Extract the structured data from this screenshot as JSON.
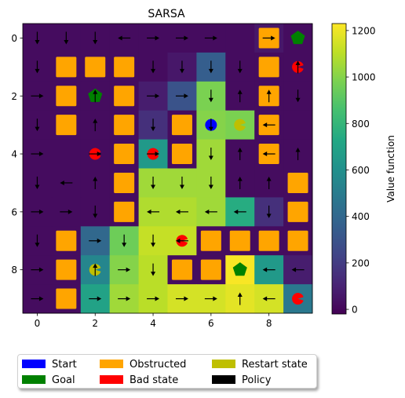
{
  "chart_data": {
    "type": "heatmap",
    "title": "SARSA",
    "xlabel": "",
    "ylabel": "",
    "colorbar_label": "Value function",
    "colorbar_ticks": [
      0,
      200,
      400,
      600,
      800,
      1000,
      1200
    ],
    "colorbar_range": [
      -20,
      1230
    ],
    "colormap": "viridis",
    "x_ticks": [
      0,
      2,
      4,
      6,
      8
    ],
    "y_ticks": [
      0,
      2,
      4,
      6,
      8
    ],
    "grid_size": [
      10,
      10
    ],
    "values": [
      [
        20,
        20,
        20,
        20,
        20,
        20,
        20,
        20,
        60,
        20
      ],
      [
        20,
        20,
        20,
        20,
        20,
        60,
        350,
        20,
        20,
        20
      ],
      [
        20,
        20,
        20,
        20,
        80,
        300,
        980,
        20,
        20,
        20
      ],
      [
        20,
        20,
        20,
        20,
        150,
        20,
        1000,
        980,
        20,
        20
      ],
      [
        20,
        20,
        20,
        20,
        650,
        20,
        1050,
        20,
        20,
        20
      ],
      [
        20,
        20,
        20,
        20,
        1050,
        1050,
        1050,
        20,
        20,
        20
      ],
      [
        20,
        20,
        20,
        20,
        1080,
        1080,
        1050,
        750,
        150,
        20
      ],
      [
        20,
        20,
        400,
        950,
        1120,
        1120,
        20,
        20,
        20,
        20
      ],
      [
        20,
        20,
        550,
        1000,
        1100,
        20,
        20,
        1220,
        650,
        80
      ],
      [
        20,
        20,
        700,
        1050,
        1100,
        1150,
        1150,
        1180,
        1150,
        480
      ]
    ],
    "obstructed": [
      [
        8,
        0
      ],
      [
        1,
        1
      ],
      [
        2,
        1
      ],
      [
        3,
        1
      ],
      [
        8,
        1
      ],
      [
        1,
        2
      ],
      [
        3,
        2
      ],
      [
        8,
        2
      ],
      [
        1,
        3
      ],
      [
        3,
        3
      ],
      [
        5,
        3
      ],
      [
        8,
        3
      ],
      [
        3,
        4
      ],
      [
        5,
        4
      ],
      [
        8,
        4
      ],
      [
        3,
        5
      ],
      [
        9,
        5
      ],
      [
        3,
        6
      ],
      [
        9,
        6
      ],
      [
        1,
        7
      ],
      [
        6,
        7
      ],
      [
        7,
        7
      ],
      [
        8,
        7
      ],
      [
        9,
        7
      ],
      [
        1,
        8
      ],
      [
        5,
        8
      ],
      [
        6,
        8
      ],
      [
        1,
        9
      ]
    ],
    "goals": [
      [
        9,
        0
      ],
      [
        2,
        2
      ],
      [
        7,
        8
      ]
    ],
    "bad_states": [
      [
        9,
        1
      ],
      [
        2,
        4
      ],
      [
        4,
        4
      ],
      [
        5,
        7
      ],
      [
        9,
        9
      ]
    ],
    "restart_states": [
      [
        7,
        3
      ],
      [
        2,
        8
      ]
    ],
    "start": [
      6,
      3
    ],
    "policy": [
      {
        "cell": [
          0,
          0
        ],
        "dir": "down"
      },
      {
        "cell": [
          1,
          0
        ],
        "dir": "down"
      },
      {
        "cell": [
          2,
          0
        ],
        "dir": "down"
      },
      {
        "cell": [
          3,
          0
        ],
        "dir": "left"
      },
      {
        "cell": [
          4,
          0
        ],
        "dir": "right"
      },
      {
        "cell": [
          5,
          0
        ],
        "dir": "right"
      },
      {
        "cell": [
          6,
          0
        ],
        "dir": "right"
      },
      {
        "cell": [
          8,
          0
        ],
        "dir": "right"
      },
      {
        "cell": [
          0,
          1
        ],
        "dir": "down"
      },
      {
        "cell": [
          4,
          1
        ],
        "dir": "down"
      },
      {
        "cell": [
          5,
          1
        ],
        "dir": "down"
      },
      {
        "cell": [
          6,
          1
        ],
        "dir": "down"
      },
      {
        "cell": [
          7,
          1
        ],
        "dir": "down"
      },
      {
        "cell": [
          9,
          1
        ],
        "dir": "up"
      },
      {
        "cell": [
          0,
          2
        ],
        "dir": "right"
      },
      {
        "cell": [
          2,
          2
        ],
        "dir": "up"
      },
      {
        "cell": [
          4,
          2
        ],
        "dir": "right"
      },
      {
        "cell": [
          5,
          2
        ],
        "dir": "right"
      },
      {
        "cell": [
          6,
          2
        ],
        "dir": "down"
      },
      {
        "cell": [
          7,
          2
        ],
        "dir": "up"
      },
      {
        "cell": [
          8,
          2
        ],
        "dir": "up"
      },
      {
        "cell": [
          9,
          2
        ],
        "dir": "down"
      },
      {
        "cell": [
          0,
          3
        ],
        "dir": "down"
      },
      {
        "cell": [
          2,
          3
        ],
        "dir": "up"
      },
      {
        "cell": [
          4,
          3
        ],
        "dir": "down"
      },
      {
        "cell": [
          6,
          3
        ],
        "dir": "down"
      },
      {
        "cell": [
          8,
          3
        ],
        "dir": "left"
      },
      {
        "cell": [
          0,
          4
        ],
        "dir": "right"
      },
      {
        "cell": [
          2,
          4
        ],
        "dir": "right"
      },
      {
        "cell": [
          4,
          4
        ],
        "dir": "right"
      },
      {
        "cell": [
          6,
          4
        ],
        "dir": "down"
      },
      {
        "cell": [
          7,
          4
        ],
        "dir": "up"
      },
      {
        "cell": [
          8,
          4
        ],
        "dir": "left"
      },
      {
        "cell": [
          9,
          4
        ],
        "dir": "up"
      },
      {
        "cell": [
          0,
          5
        ],
        "dir": "down"
      },
      {
        "cell": [
          1,
          5
        ],
        "dir": "left"
      },
      {
        "cell": [
          2,
          5
        ],
        "dir": "up"
      },
      {
        "cell": [
          4,
          5
        ],
        "dir": "down"
      },
      {
        "cell": [
          5,
          5
        ],
        "dir": "down"
      },
      {
        "cell": [
          6,
          5
        ],
        "dir": "down"
      },
      {
        "cell": [
          7,
          5
        ],
        "dir": "up"
      },
      {
        "cell": [
          8,
          5
        ],
        "dir": "up"
      },
      {
        "cell": [
          0,
          6
        ],
        "dir": "right"
      },
      {
        "cell": [
          1,
          6
        ],
        "dir": "right"
      },
      {
        "cell": [
          2,
          6
        ],
        "dir": "down"
      },
      {
        "cell": [
          4,
          6
        ],
        "dir": "left"
      },
      {
        "cell": [
          5,
          6
        ],
        "dir": "left"
      },
      {
        "cell": [
          6,
          6
        ],
        "dir": "left"
      },
      {
        "cell": [
          7,
          6
        ],
        "dir": "left"
      },
      {
        "cell": [
          8,
          6
        ],
        "dir": "down"
      },
      {
        "cell": [
          0,
          7
        ],
        "dir": "down"
      },
      {
        "cell": [
          2,
          7
        ],
        "dir": "right"
      },
      {
        "cell": [
          3,
          7
        ],
        "dir": "down"
      },
      {
        "cell": [
          4,
          7
        ],
        "dir": "down"
      },
      {
        "cell": [
          5,
          7
        ],
        "dir": "left"
      },
      {
        "cell": [
          0,
          8
        ],
        "dir": "right"
      },
      {
        "cell": [
          2,
          8
        ],
        "dir": "up"
      },
      {
        "cell": [
          3,
          8
        ],
        "dir": "right"
      },
      {
        "cell": [
          4,
          8
        ],
        "dir": "down"
      },
      {
        "cell": [
          8,
          8
        ],
        "dir": "left"
      },
      {
        "cell": [
          9,
          8
        ],
        "dir": "left"
      },
      {
        "cell": [
          0,
          9
        ],
        "dir": "right"
      },
      {
        "cell": [
          2,
          9
        ],
        "dir": "right"
      },
      {
        "cell": [
          3,
          9
        ],
        "dir": "right"
      },
      {
        "cell": [
          4,
          9
        ],
        "dir": "right"
      },
      {
        "cell": [
          5,
          9
        ],
        "dir": "right"
      },
      {
        "cell": [
          6,
          9
        ],
        "dir": "right"
      },
      {
        "cell": [
          7,
          9
        ],
        "dir": "up"
      },
      {
        "cell": [
          8,
          9
        ],
        "dir": "left"
      }
    ],
    "colors": {
      "start": "#0000ff",
      "goal": "#008000",
      "obstructed": "#ffa500",
      "bad_state": "#ff0000",
      "restart_state": "#bfbf00",
      "policy": "#000000"
    },
    "legend_placement": "below",
    "legend": [
      {
        "label": "Start",
        "key": "start"
      },
      {
        "label": "Goal",
        "key": "goal"
      },
      {
        "label": "Obstructed",
        "key": "obstructed"
      },
      {
        "label": "Bad state",
        "key": "bad_state"
      },
      {
        "label": "Restart state",
        "key": "restart_state"
      },
      {
        "label": "Policy",
        "key": "policy"
      }
    ]
  }
}
